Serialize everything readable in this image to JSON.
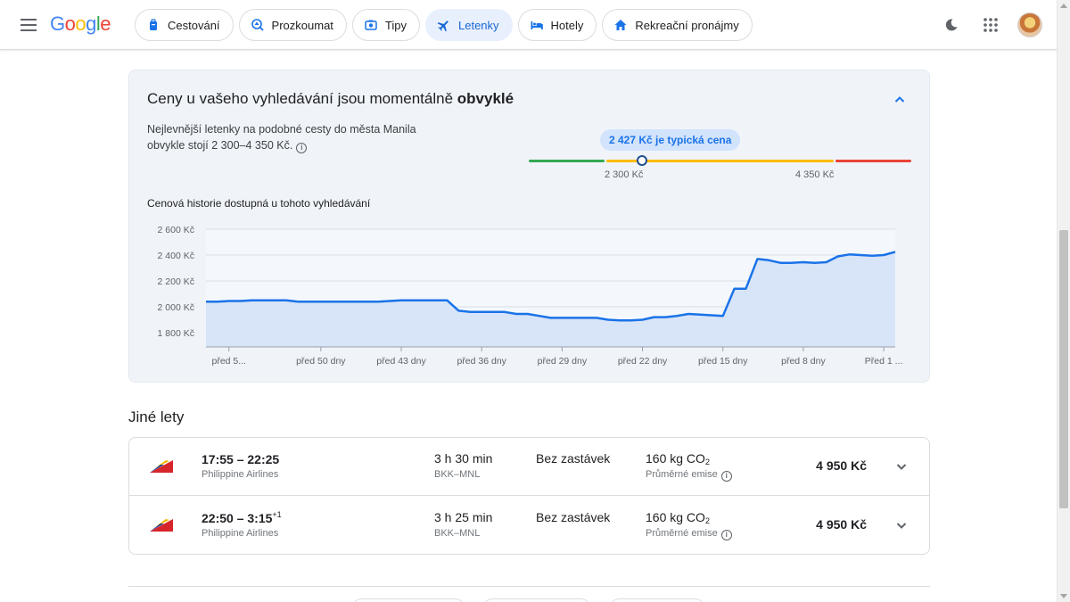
{
  "header": {
    "logo_text": "Google",
    "logo_colors": [
      "#4285F4",
      "#EA4335",
      "#FBBC05",
      "#4285F4",
      "#34A853",
      "#EA4335"
    ],
    "nav": [
      {
        "label": "Cestování",
        "icon": "travel-bag-icon",
        "active": false
      },
      {
        "label": "Prozkoumat",
        "icon": "explore-icon",
        "active": false
      },
      {
        "label": "Tipy",
        "icon": "camera-icon",
        "active": false
      },
      {
        "label": "Letenky",
        "icon": "airplane-icon",
        "active": true
      },
      {
        "label": "Hotely",
        "icon": "bed-icon",
        "active": false
      },
      {
        "label": "Rekreační pronájmy",
        "icon": "house-icon",
        "active": false
      }
    ]
  },
  "insight": {
    "title_prefix": "Ceny u vašeho vyhledávání jsou momentálně ",
    "title_emphasis": "obvyklé",
    "description": "Nejlevnější letenky na podobné cesty do města Manila obvykle stojí 2 300–4 350 Kč.",
    "typical_badge": "2 427 Kč je typická cena",
    "range_low_label": "2 300 Kč",
    "range_high_label": "4 350 Kč",
    "range_colors": {
      "low": "#34a853",
      "typical": "#fbbc04",
      "high": "#ea4335"
    },
    "history_label": "Cenová historie dostupná u tohoto vyhledávání"
  },
  "chart_data": {
    "type": "area",
    "ytick_labels": [
      "2 600 Kč",
      "2 400 Kč",
      "2 200 Kč",
      "2 000 Kč",
      "1 800 Kč"
    ],
    "yticks": [
      2600,
      2400,
      2200,
      2000,
      1800
    ],
    "ylim": [
      1690,
      2600
    ],
    "xlim": [
      -60,
      0
    ],
    "xticks": [
      -58,
      -50,
      -43,
      -36,
      -29,
      -22,
      -15,
      -8,
      -1
    ],
    "xtick_labels": [
      "před 5...",
      "před 50 dny",
      "před 43 dny",
      "před 36 dny",
      "před 29 dny",
      "před 22 dny",
      "před 15 dny",
      "před 8 dny",
      "Před 1 ..."
    ],
    "line_color": "#1a73e8",
    "fill_color": "#d8e4f8",
    "grid": true,
    "x": [
      -60,
      -59,
      -58,
      -57,
      -56,
      -55,
      -54,
      -53,
      -52,
      -51,
      -50,
      -49,
      -48,
      -47,
      -46,
      -45,
      -44,
      -43,
      -42,
      -41,
      -40,
      -39,
      -38,
      -37,
      -36,
      -35,
      -34,
      -33,
      -32,
      -31,
      -30,
      -29,
      -28,
      -27,
      -26,
      -25,
      -24,
      -23,
      -22,
      -21,
      -20,
      -19,
      -18,
      -17,
      -16,
      -15,
      -14,
      -13,
      -12,
      -11,
      -10,
      -9,
      -8,
      -7,
      -6,
      -5,
      -4,
      -3,
      -2,
      -1,
      0
    ],
    "values": [
      2040,
      2040,
      2045,
      2045,
      2050,
      2050,
      2050,
      2050,
      2040,
      2040,
      2040,
      2040,
      2040,
      2040,
      2040,
      2040,
      2045,
      2050,
      2050,
      2050,
      2050,
      2050,
      1970,
      1960,
      1960,
      1960,
      1960,
      1945,
      1945,
      1930,
      1915,
      1915,
      1915,
      1915,
      1915,
      1900,
      1895,
      1895,
      1900,
      1920,
      1920,
      1930,
      1945,
      1940,
      1935,
      1930,
      2140,
      2140,
      2370,
      2360,
      2340,
      2340,
      2345,
      2340,
      2345,
      2390,
      2405,
      2400,
      2395,
      2400,
      2425
    ]
  },
  "other_flights": {
    "title": "Jiné lety",
    "flights": [
      {
        "depart": "17:55",
        "arrive": "22:25",
        "day_offset": "",
        "airline": "Philippine Airlines",
        "duration": "3 h 30 min",
        "route": "BKK–MNL",
        "stops": "Bez zastávek",
        "emissions": "160 kg CO",
        "emissions_sub": "2",
        "emissions_label": "Průměrné emise",
        "price": "4 950 Kč"
      },
      {
        "depart": "22:50",
        "arrive": "3:15",
        "day_offset": "+1",
        "airline": "Philippine Airlines",
        "duration": "3 h 25 min",
        "route": "BKK–MNL",
        "stops": "Bez zastávek",
        "emissions": "160 kg CO",
        "emissions_sub": "2",
        "emissions_label": "Průměrné emise",
        "price": "4 950 Kč"
      }
    ]
  }
}
